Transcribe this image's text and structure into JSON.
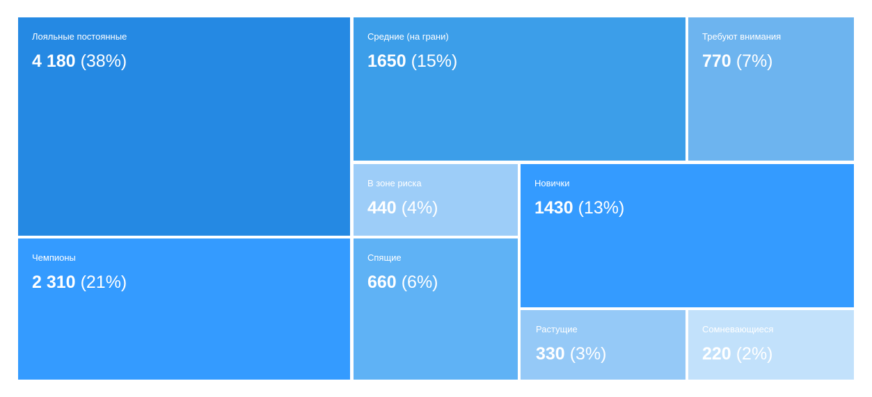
{
  "chart_data": {
    "type": "treemap",
    "categories": [
      "Лояльные постоянные",
      "Средние (на грани)",
      "Требуют внимания",
      "В зоне риска",
      "Новички",
      "Чемпионы",
      "Спящие",
      "Растущие",
      "Сомневающиеся"
    ],
    "values": [
      4180,
      1650,
      770,
      440,
      1430,
      2310,
      660,
      330,
      220
    ],
    "value_labels": [
      "4 180",
      "1650",
      "770",
      "440",
      "1430",
      "2 310",
      "660",
      "330",
      "220"
    ],
    "shares": [
      38,
      15,
      7,
      4,
      13,
      21,
      6,
      3,
      2
    ],
    "share_labels": [
      "(38%)",
      "(15%)",
      "(7%)",
      "(4%)",
      "(13%)",
      "(21%)",
      "(6%)",
      "(3%)",
      "(2%)"
    ],
    "colors": [
      "#2589e3",
      "#3c9ee9",
      "#6db4ef",
      "#9dcdf8",
      "#349bff",
      "#349bff",
      "#5fb2f5",
      "#95c9f7",
      "#c2e1fb"
    ]
  }
}
